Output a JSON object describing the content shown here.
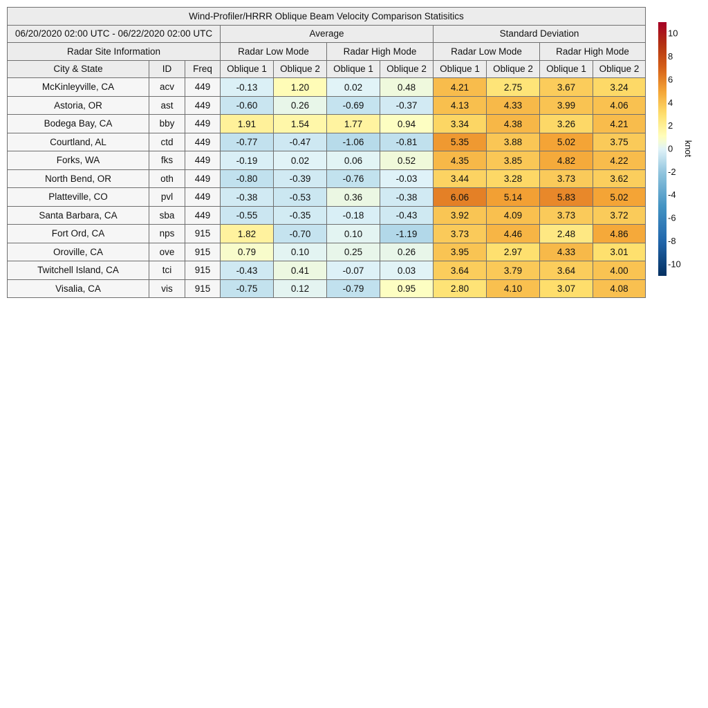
{
  "chart_data": {
    "type": "table",
    "title": "Wind-Profiler/HRRR Oblique Beam Velocity Comparison Statisitics",
    "period": "06/20/2020 02:00 UTC - 06/22/2020 02:00 UTC",
    "group_headers": {
      "info": "Radar Site Information",
      "average": "Average",
      "stddev": "Standard Deviation"
    },
    "mode_headers": [
      "Radar Low Mode",
      "Radar High Mode",
      "Radar Low Mode",
      "Radar High Mode"
    ],
    "columns": [
      "City & State",
      "ID",
      "Freq",
      "Oblique 1",
      "Oblique 2",
      "Oblique 1",
      "Oblique 2",
      "Oblique 1",
      "Oblique 2",
      "Oblique 1",
      "Oblique 2"
    ],
    "rows": [
      {
        "city": "McKinleyville, CA",
        "id": "acv",
        "freq": "449",
        "values": [
          "-0.13",
          "1.20",
          "0.02",
          "0.48",
          "4.21",
          "2.75",
          "3.67",
          "3.24"
        ]
      },
      {
        "city": "Astoria, OR",
        "id": "ast",
        "freq": "449",
        "values": [
          "-0.60",
          "0.26",
          "-0.69",
          "-0.37",
          "4.13",
          "4.33",
          "3.99",
          "4.06"
        ]
      },
      {
        "city": "Bodega Bay, CA",
        "id": "bby",
        "freq": "449",
        "values": [
          "1.91",
          "1.54",
          "1.77",
          "0.94",
          "3.34",
          "4.38",
          "3.26",
          "4.21"
        ]
      },
      {
        "city": "Courtland, AL",
        "id": "ctd",
        "freq": "449",
        "values": [
          "-0.77",
          "-0.47",
          "-1.06",
          "-0.81",
          "5.35",
          "3.88",
          "5.02",
          "3.75"
        ]
      },
      {
        "city": "Forks, WA",
        "id": "fks",
        "freq": "449",
        "values": [
          "-0.19",
          "0.02",
          "0.06",
          "0.52",
          "4.35",
          "3.85",
          "4.82",
          "4.22"
        ]
      },
      {
        "city": "North Bend, OR",
        "id": "oth",
        "freq": "449",
        "values": [
          "-0.80",
          "-0.39",
          "-0.76",
          "-0.03",
          "3.44",
          "3.28",
          "3.73",
          "3.62"
        ]
      },
      {
        "city": "Platteville, CO",
        "id": "pvl",
        "freq": "449",
        "values": [
          "-0.38",
          "-0.53",
          "0.36",
          "-0.38",
          "6.06",
          "5.14",
          "5.83",
          "5.02"
        ]
      },
      {
        "city": "Santa Barbara, CA",
        "id": "sba",
        "freq": "449",
        "values": [
          "-0.55",
          "-0.35",
          "-0.18",
          "-0.43",
          "3.92",
          "4.09",
          "3.73",
          "3.72"
        ]
      },
      {
        "city": "Fort Ord, CA",
        "id": "nps",
        "freq": "915",
        "values": [
          "1.82",
          "-0.70",
          "0.10",
          "-1.19",
          "3.73",
          "4.46",
          "2.48",
          "4.86"
        ]
      },
      {
        "city": "Oroville, CA",
        "id": "ove",
        "freq": "915",
        "values": [
          "0.79",
          "0.10",
          "0.25",
          "0.26",
          "3.95",
          "2.97",
          "4.33",
          "3.01"
        ]
      },
      {
        "city": "Twitchell Island, CA",
        "id": "tci",
        "freq": "915",
        "values": [
          "-0.43",
          "0.41",
          "-0.07",
          "0.03",
          "3.64",
          "3.79",
          "3.64",
          "4.00"
        ]
      },
      {
        "city": "Visalia, CA",
        "id": "vis",
        "freq": "915",
        "values": [
          "-0.75",
          "0.12",
          "-0.79",
          "0.95",
          "2.80",
          "4.10",
          "3.07",
          "4.08"
        ]
      }
    ],
    "colorbar": {
      "label": "knot",
      "range": [
        -11,
        11
      ],
      "ticks": [
        "10",
        "8",
        "6",
        "4",
        "2",
        "0",
        "-2",
        "-4",
        "-6",
        "-8",
        "-10"
      ]
    }
  }
}
